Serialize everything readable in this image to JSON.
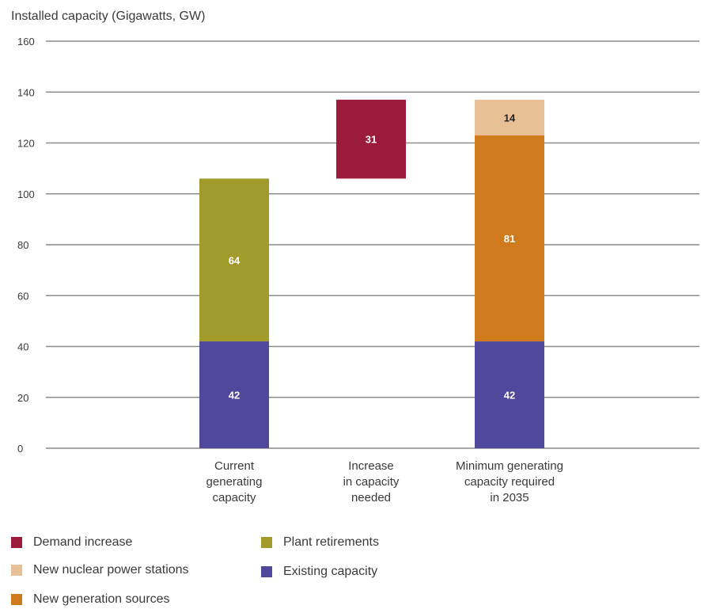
{
  "chart_data": {
    "type": "bar",
    "stacked": true,
    "waterfall": true,
    "ylabel": "Installed capacity (Gigawatts, GW)",
    "ylim": [
      0,
      160
    ],
    "yticks": [
      "0",
      "20",
      "40",
      "60",
      "80",
      "100",
      "120",
      "140",
      "160"
    ],
    "grid": true,
    "categories": [
      [
        "Current",
        "generating",
        "capacity"
      ],
      [
        "Increase",
        "in capacity",
        "needed"
      ],
      [
        "Minimum generating",
        "capacity required",
        "in 2035"
      ]
    ],
    "bars": [
      {
        "category": 0,
        "segments": [
          {
            "series": "Existing capacity",
            "base": 0,
            "value": 42,
            "label": "42"
          },
          {
            "series": "Plant retirements",
            "base": 42,
            "value": 64,
            "label": "64"
          }
        ]
      },
      {
        "category": 1,
        "segments": [
          {
            "series": "Demand increase",
            "base": 106,
            "value": 31,
            "label": "31"
          }
        ]
      },
      {
        "category": 2,
        "segments": [
          {
            "series": "Existing capacity",
            "base": 0,
            "value": 42,
            "label": "42"
          },
          {
            "series": "New generation sources",
            "base": 42,
            "value": 81,
            "label": "81"
          },
          {
            "series": "New nuclear power stations",
            "base": 123,
            "value": 14,
            "label": "14"
          }
        ]
      }
    ],
    "series": [
      {
        "name": "Demand increase",
        "color": "#9b1b3a"
      },
      {
        "name": "Plant retirements",
        "color": "#a29b2c"
      },
      {
        "name": "New nuclear power stations",
        "color": "#e9bf95"
      },
      {
        "name": "Existing capacity",
        "color": "#50489b"
      },
      {
        "name": "New generation sources",
        "color": "#cf7a1c"
      }
    ],
    "legend_position": "bottom-left"
  }
}
